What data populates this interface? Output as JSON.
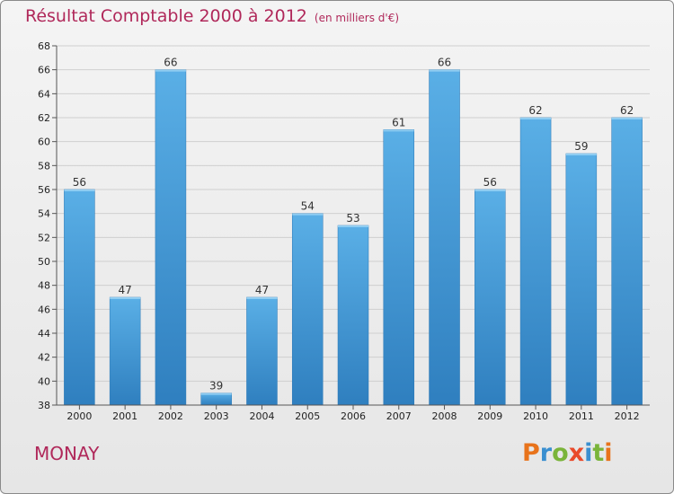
{
  "chart_data": {
    "type": "bar",
    "title": "Résultat Comptable 2000 à 2012",
    "unit": "(en milliers d'€)",
    "categories": [
      "2000",
      "2001",
      "2002",
      "2003",
      "2004",
      "2005",
      "2006",
      "2007",
      "2008",
      "2009",
      "2010",
      "2011",
      "2012"
    ],
    "values": [
      56,
      47,
      66,
      39,
      47,
      54,
      53,
      61,
      66,
      56,
      62,
      59,
      62
    ],
    "ylim": [
      38,
      68
    ],
    "yticks": [
      38,
      40,
      42,
      44,
      46,
      48,
      50,
      52,
      54,
      56,
      58,
      60,
      62,
      64,
      66,
      68
    ],
    "grid": true,
    "bar_color_top": "#5aafe6",
    "bar_color_bottom": "#2f7fbf"
  },
  "footer": {
    "commune": "MONAY",
    "logo": "Proxiti"
  }
}
